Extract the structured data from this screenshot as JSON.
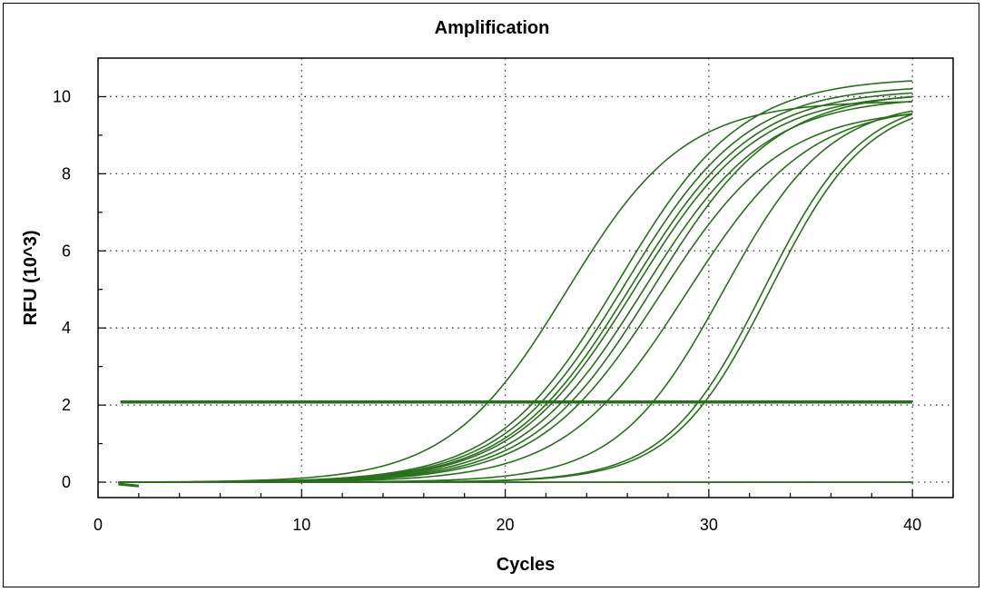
{
  "chart_data": {
    "type": "line",
    "title": "Amplification",
    "xlabel": "Cycles",
    "ylabel": "RFU (10^3)",
    "xlim": [
      0,
      42
    ],
    "ylim": [
      -0.4,
      11
    ],
    "xticks": [
      0,
      10,
      20,
      30,
      40
    ],
    "yticks": [
      0,
      2,
      4,
      6,
      8,
      10
    ],
    "grid": true,
    "legend": "none",
    "line_color": "#2a6e1e",
    "threshold": 2.08,
    "x_range": [
      1,
      40
    ],
    "curves": [
      {
        "midpoint": 23.0,
        "plateau": 9.9,
        "slope": 2.9
      },
      {
        "midpoint": 25.6,
        "plateau": 10.5,
        "slope": 3.0
      },
      {
        "midpoint": 25.9,
        "plateau": 10.3,
        "slope": 3.0
      },
      {
        "midpoint": 26.2,
        "plateau": 10.2,
        "slope": 3.0
      },
      {
        "midpoint": 26.4,
        "plateau": 10.1,
        "slope": 3.0
      },
      {
        "midpoint": 26.8,
        "plateau": 10.0,
        "slope": 3.0
      },
      {
        "midpoint": 27.3,
        "plateau": 10.15,
        "slope": 3.0
      },
      {
        "midpoint": 27.6,
        "plateau": 9.7,
        "slope": 3.0
      },
      {
        "midpoint": 28.9,
        "plateau": 9.8,
        "slope": 3.0
      },
      {
        "midpoint": 30.7,
        "plateau": 9.9,
        "slope": 2.6
      },
      {
        "midpoint": 32.7,
        "plateau": 10.0,
        "slope": 2.4
      },
      {
        "midpoint": 33.0,
        "plateau": 9.95,
        "slope": 2.4
      }
    ],
    "flat_curves": 2
  }
}
